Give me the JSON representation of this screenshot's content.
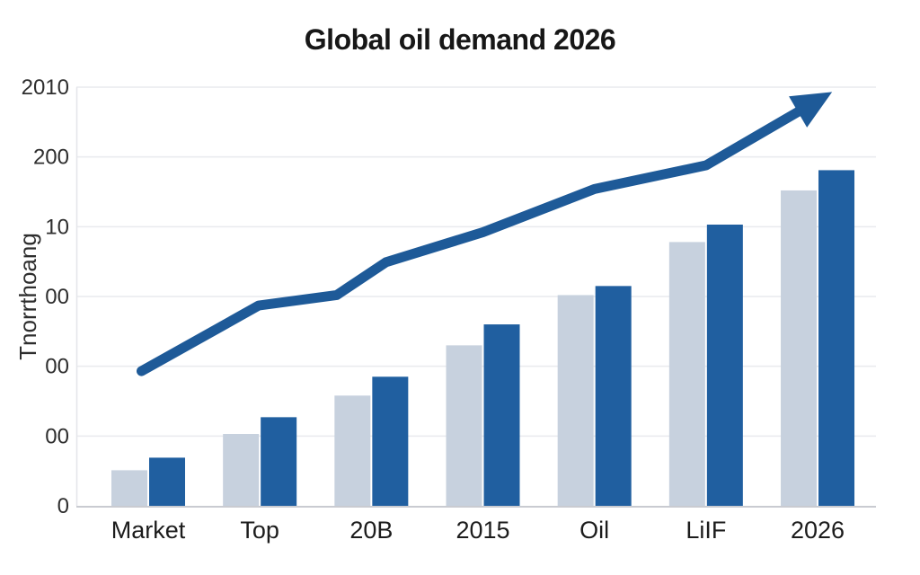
{
  "page": {
    "background": "#ffffff"
  },
  "chart_data": {
    "type": "bar",
    "title": "Global oil demand 2026",
    "xlabel": "",
    "ylabel": "Tnorrthoang",
    "categories": [
      "Market",
      "Top",
      "20B",
      "2015",
      "Oil",
      "LiIF",
      "2026"
    ],
    "series": [
      {
        "name": "light-blue-bars",
        "color": "#c7d1de",
        "values": [
          51,
          103,
          158,
          230,
          302,
          378,
          452
        ]
      },
      {
        "name": "dark-blue-bars",
        "color": "#205fa0",
        "values": [
          69,
          127,
          185,
          260,
          315,
          403,
          481
        ]
      }
    ],
    "trend_line": {
      "name": "growth-trend-arrow",
      "color": "#1e5a98",
      "x_index": [
        -0.06,
        0.99,
        1.69,
        2.13,
        3.0,
        4.0,
        5.0,
        6.13
      ],
      "values": [
        193,
        287,
        302,
        349,
        392,
        454,
        488,
        593
      ],
      "arrowhead": true
    },
    "y_axis": {
      "tick_labels_top_to_bottom": [
        "2010",
        "200",
        "10",
        "00",
        "00",
        "00",
        "0"
      ],
      "ylim": [
        0,
        600
      ],
      "gridlines": true
    },
    "legend": "none",
    "colors": {
      "grid": "#e9eaee",
      "axis": "#c9cbd1",
      "tick_text": "#2e2e2e",
      "category_text": "#1c1c1c",
      "title_text": "#171717"
    }
  }
}
